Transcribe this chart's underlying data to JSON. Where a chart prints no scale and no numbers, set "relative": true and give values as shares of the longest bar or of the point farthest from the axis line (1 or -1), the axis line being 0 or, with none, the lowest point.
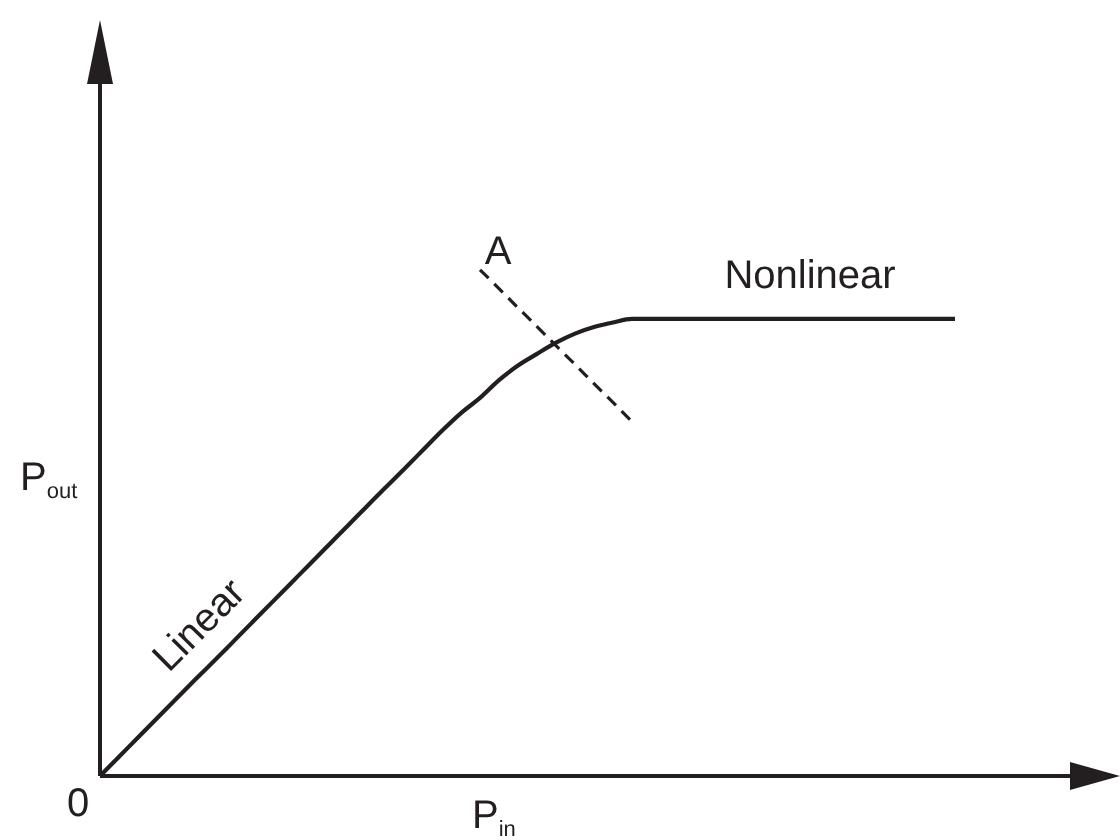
{
  "chart_data": {
    "type": "line",
    "relative": true,
    "xlabel": "P$_{in}$",
    "ylabel": "P$_{out}$",
    "annotations": [
      "Linear",
      "Nonlinear",
      "0"
    ],
    "marker": "none",
    "line_style": "solid",
    "categories": [
      null,
      null,
      null,
      null,
      null,
      null,
      null,
      null,
      null,
      null,
      null,
      null,
      null,
      null,
      null,
      null,
      null,
      null,
      null,
      null,
      null,
      null,
      null,
      null,
      null,
      null,
      null,
      null,
      null,
      null,
      null,
      null,
      null,
      null,
      null,
      null,
      null,
      null,
      null,
      null,
      null,
      null,
      null,
      null,
      null,
      null,
      null,
      null,
      null,
      null,
      null,
      null,
      null,
      null
    ],
    "series": [
      {
        "color": "#231f20",
        "values": [
          0,
          0.038,
          0.076,
          0.114,
          0.152,
          0.19,
          0.227,
          0.265,
          0.303,
          0.341,
          0.379,
          0.417,
          0.455,
          0.493,
          0.531,
          0.569,
          0.606,
          0.644,
          0.682,
          0.717,
          0.747,
          0.782,
          0.811,
          0.834,
          0.856,
          0.874,
          0.887,
          0.896,
          0.903,
          0.903,
          0.903,
          0.903,
          0.903,
          0.903,
          0.903,
          0.903,
          0.903,
          0.903,
          0.903,
          0.903,
          0.903,
          0.903,
          0.903,
          0.903,
          0.903,
          0.903,
          null,
          null,
          null,
          null,
          null,
          null,
          null,
          null
        ]
      },
      {
        "name": "A",
        "color": "#231f20",
        "line_style": "dashed",
        "values": [
          null,
          null,
          null,
          null,
          null,
          null,
          null,
          null,
          null,
          null,
          null,
          null,
          null,
          null,
          null,
          null,
          null,
          null,
          null,
          null,
          1.0,
          0.963,
          0.925,
          0.888,
          0.85,
          0.813,
          0.775,
          0.738,
          0.7,
          null,
          null,
          null,
          null,
          null,
          null,
          null,
          null,
          null,
          null,
          null,
          null,
          null,
          null,
          null,
          null,
          null,
          null,
          null,
          null,
          null,
          null,
          null,
          null,
          null
        ]
      }
    ]
  }
}
